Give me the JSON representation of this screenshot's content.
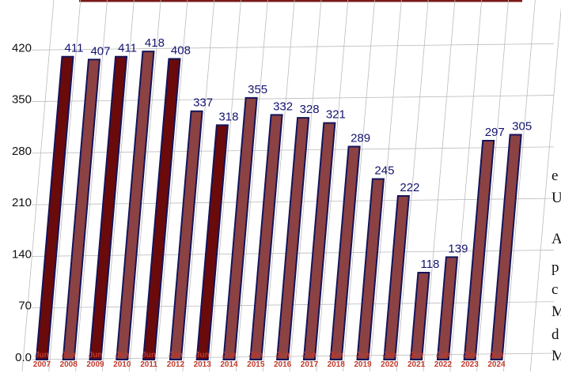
{
  "chart_data": {
    "type": "bar",
    "categories": [
      "Jun 2007",
      "Jun 2008",
      "Jun 2009",
      "Jun 2010",
      "Jun 2011",
      "Jun 2012",
      "Jun 2013",
      "Jun 2014",
      "Jun 2015",
      "Jun 2016",
      "Jun 2017",
      "Jun 2018",
      "Jun 2019",
      "Jun 2020",
      "Jun 2021",
      "Jun 2022",
      "Jun 2023",
      "Jun 2024"
    ],
    "values": [
      411,
      407,
      411,
      418,
      408,
      337,
      318,
      355,
      332,
      328,
      321,
      289,
      245,
      222,
      118,
      139,
      297,
      305
    ],
    "colors": [
      "#6b0a0a",
      "#8c4242",
      "#6b0a0a",
      "#8c4242",
      "#6b0a0a",
      "#8c4242",
      "#6b0a0a",
      "#8c4242",
      "#8c4242",
      "#8c4242",
      "#8c4242",
      "#8c4242",
      "#8c4242",
      "#8c4242",
      "#8c4242",
      "#8c4242",
      "#8c4242",
      "#8c4242"
    ],
    "ylim": [
      0,
      460
    ],
    "yticks": [
      {
        "value": 0,
        "label": "0.0"
      },
      70,
      140,
      210,
      280,
      350,
      420
    ],
    "grid": true,
    "background_text": [
      "e",
      "U",
      "A",
      "p",
      "c",
      "M",
      "d",
      "M"
    ]
  }
}
